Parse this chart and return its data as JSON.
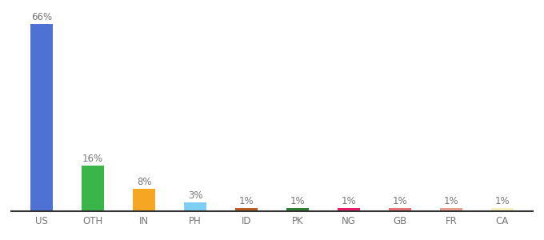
{
  "categories": [
    "US",
    "OTH",
    "IN",
    "PH",
    "ID",
    "PK",
    "NG",
    "GB",
    "FR",
    "CA"
  ],
  "values": [
    66,
    16,
    8,
    3,
    1,
    1,
    1,
    1,
    1,
    1
  ],
  "bar_colors": [
    "#4d72d4",
    "#3ab54a",
    "#f5a623",
    "#7ecef4",
    "#b85c20",
    "#2e7d32",
    "#e91e6a",
    "#e57373",
    "#e8a090",
    "#f5f0c0"
  ],
  "labels": [
    "66%",
    "16%",
    "8%",
    "3%",
    "1%",
    "1%",
    "1%",
    "1%",
    "1%",
    "1%"
  ],
  "label_fontsize": 8.5,
  "tick_fontsize": 8.5,
  "background_color": "#ffffff",
  "ylim": [
    0,
    72
  ],
  "bar_width": 0.45
}
